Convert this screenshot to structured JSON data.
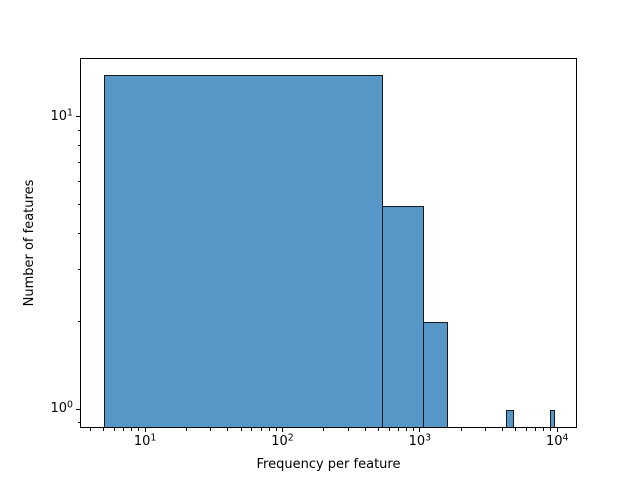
{
  "figure": {
    "background": "#ffffff"
  },
  "chart_data": {
    "type": "histogram",
    "title": "",
    "xlabel": "Frequency per feature",
    "ylabel": "Number of features",
    "xscale": "log",
    "yscale": "log",
    "xlim": [
      3.36,
      13920
    ],
    "ylim": [
      0.862,
      15.92
    ],
    "xticks": [
      10,
      100,
      1000,
      10000
    ],
    "yticks": [
      1,
      10
    ],
    "minor_ticks": true,
    "grid": false,
    "legend": false,
    "bars": [
      {
        "x0": 5,
        "x1": 525,
        "count": 14
      },
      {
        "x0": 525,
        "x1": 1045,
        "count": 5
      },
      {
        "x0": 1045,
        "x1": 1565,
        "count": 2
      },
      {
        "x0": 4165,
        "x1": 4685,
        "count": 1
      },
      {
        "x0": 8845,
        "x1": 9365,
        "count": 1
      }
    ],
    "colors": {
      "bar_fill": "#5697c8",
      "bar_edge": "#16191d",
      "spine": "#000000",
      "tick": "#000000",
      "text": "#000000",
      "background": "#ffffff"
    }
  }
}
